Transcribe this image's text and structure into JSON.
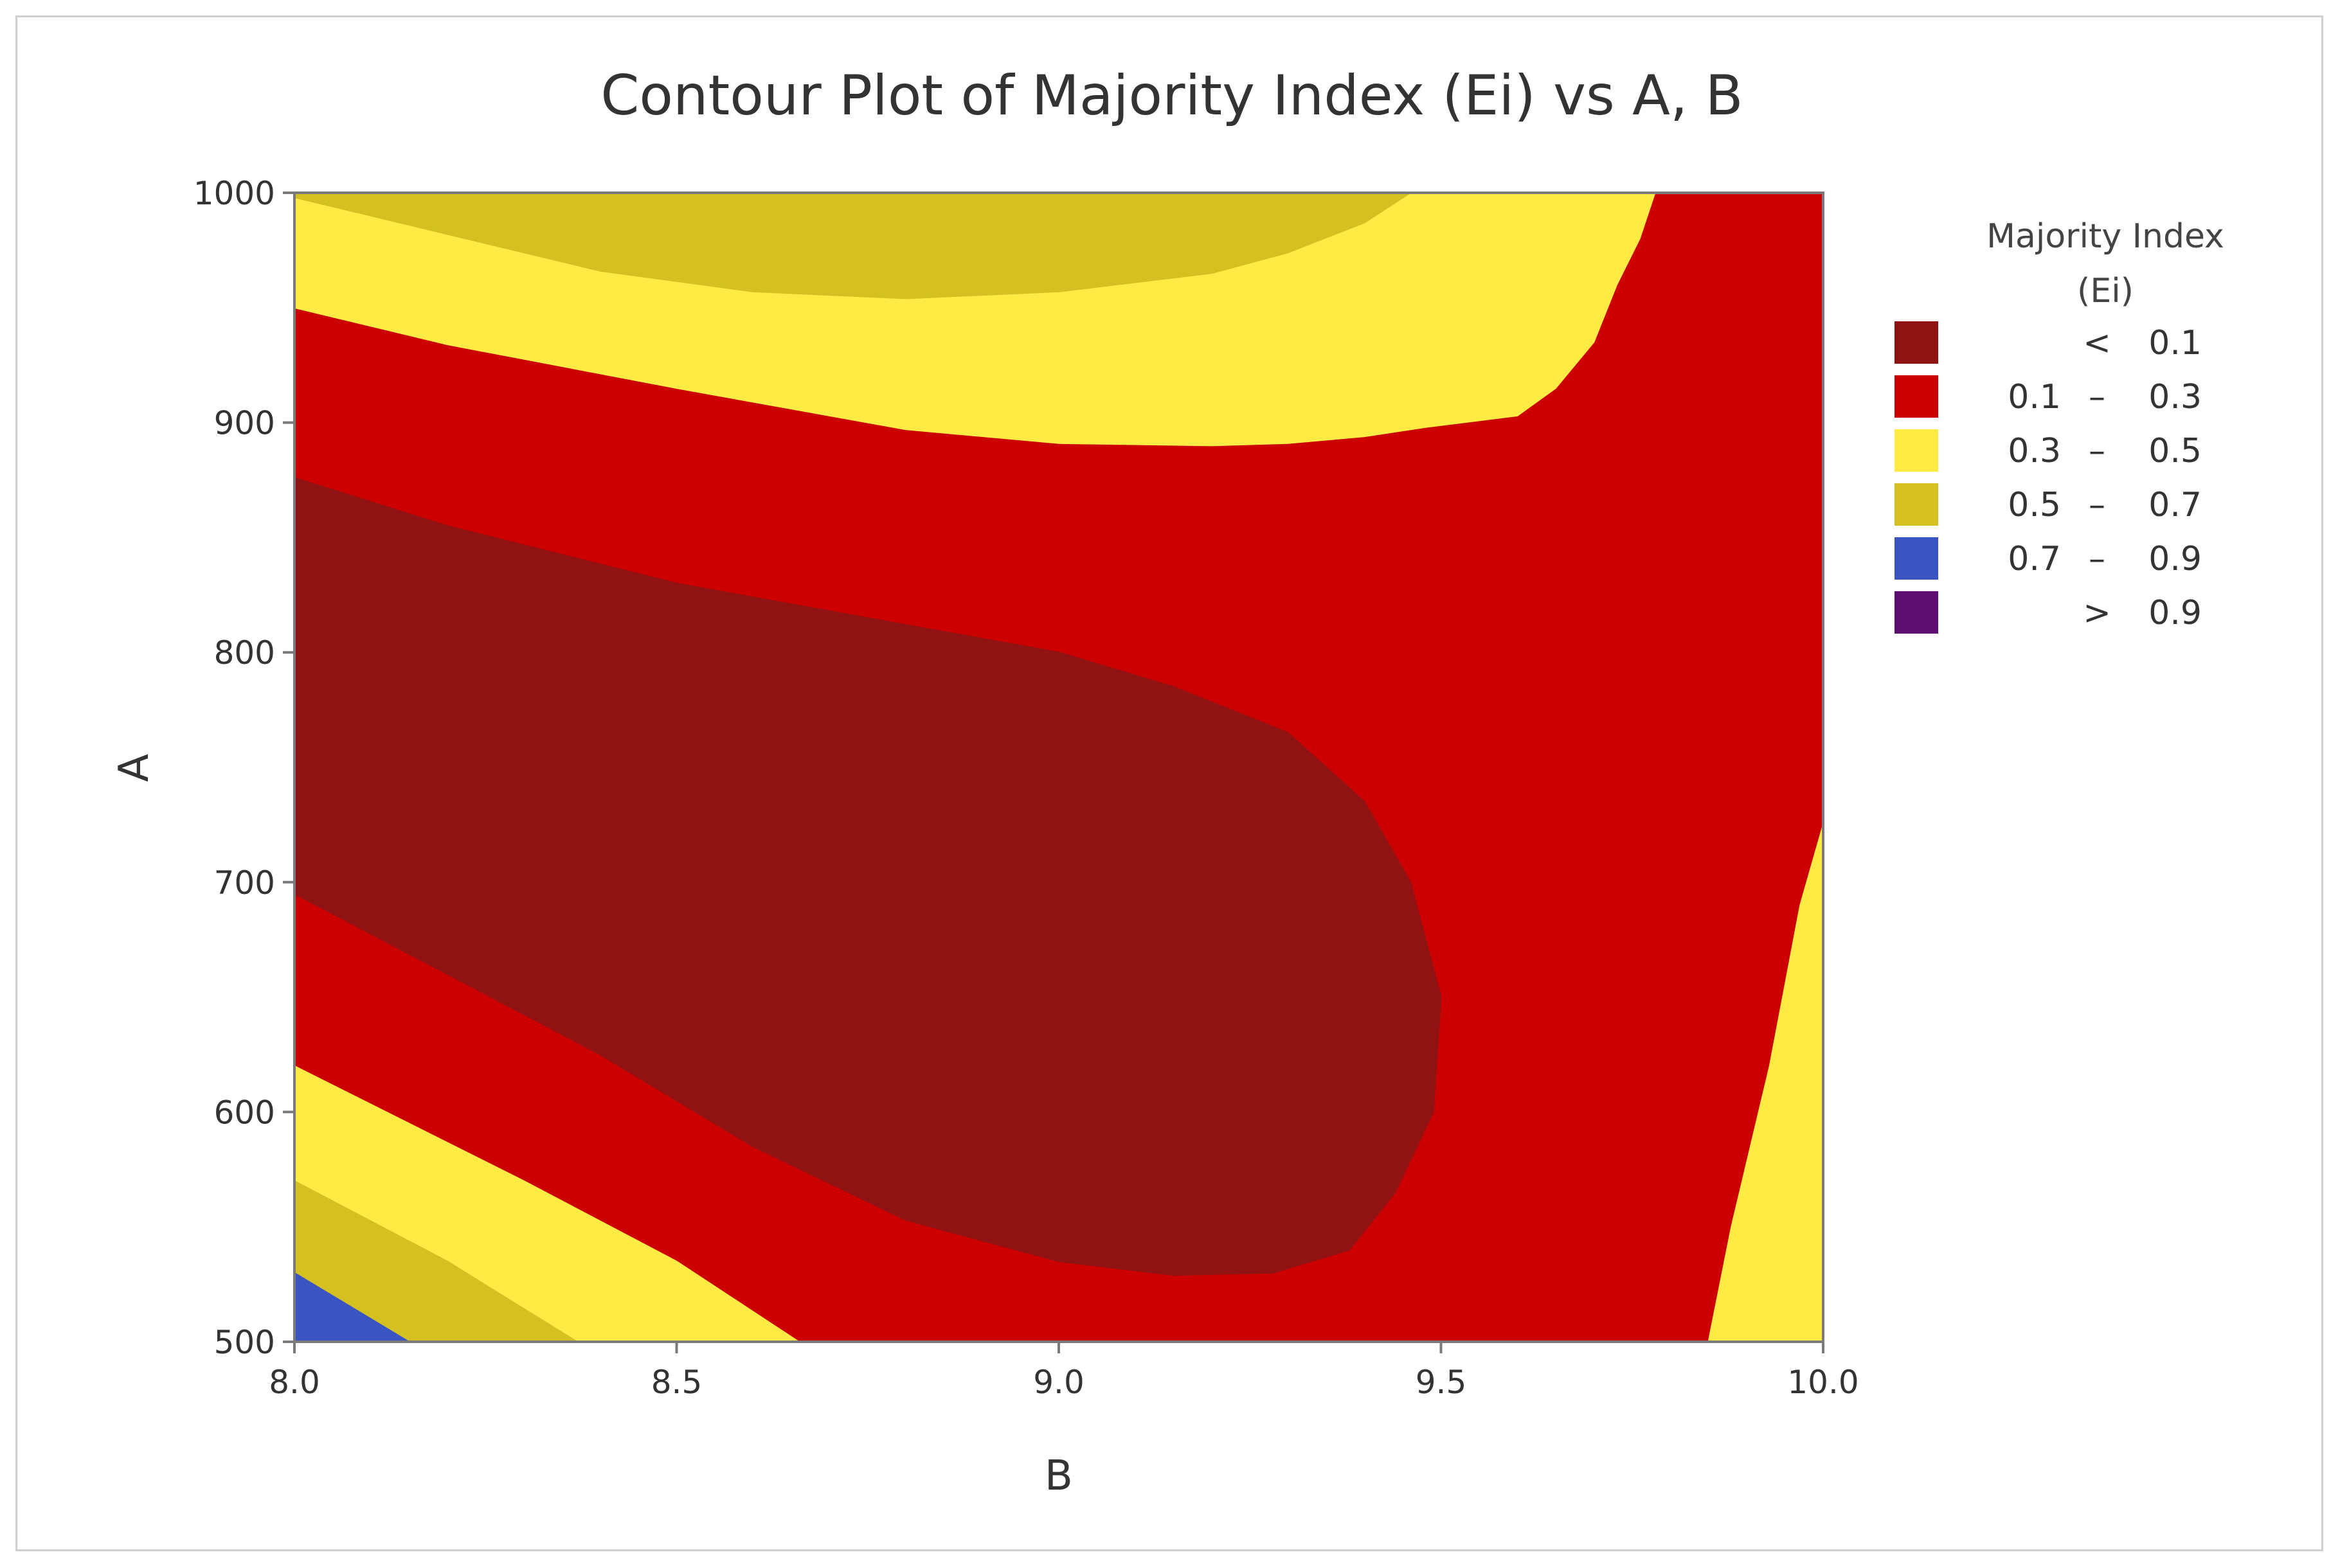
{
  "chart_data": {
    "type": "contour",
    "title": "Contour Plot of Majority Index (Ei) vs A, B",
    "xlabel": "B",
    "ylabel": "A",
    "xlim": [
      8.0,
      10.0
    ],
    "ylim": [
      500,
      1000
    ],
    "x_ticks": [
      "8.0",
      "8.5",
      "9.0",
      "9.5",
      "10.0"
    ],
    "y_ticks": [
      "500",
      "600",
      "700",
      "800",
      "900",
      "1000"
    ],
    "legend": {
      "title_line1": "Majority Index",
      "title_line2": "(Ei)",
      "placement": "right",
      "entries": [
        {
          "op": "<",
          "low": "",
          "dash": "",
          "high": "0.1",
          "color": "#901313"
        },
        {
          "op": "",
          "low": "0.1",
          "dash": "–",
          "high": "0.3",
          "color": "#cc0000"
        },
        {
          "op": "",
          "low": "0.3",
          "dash": "–",
          "high": "0.5",
          "color": "#ffeb44"
        },
        {
          "op": "",
          "low": "0.5",
          "dash": "–",
          "high": "0.7",
          "color": "#d4c121"
        },
        {
          "op": "",
          "low": "0.7",
          "dash": "–",
          "high": "0.9",
          "color": "#3a55c2"
        },
        {
          "op": ">",
          "low": "",
          "dash": "",
          "high": "0.9",
          "color": "#5c0f70"
        }
      ]
    },
    "regions": [
      {
        "level": "0.1 – 0.3",
        "color": "#cc0000",
        "outline": "full",
        "points": [
          [
            8.0,
            500
          ],
          [
            10.0,
            500
          ],
          [
            10.0,
            1000
          ],
          [
            8.0,
            1000
          ]
        ]
      },
      {
        "level": "0.3 – 0.5",
        "color": "#ffeb44",
        "outline": "top band",
        "points": [
          [
            8.0,
            1000
          ],
          [
            9.78,
            1000
          ],
          [
            9.76,
            980
          ],
          [
            9.73,
            960
          ],
          [
            9.7,
            935
          ],
          [
            9.65,
            915
          ],
          [
            9.6,
            903
          ],
          [
            9.48,
            898
          ],
          [
            9.4,
            894
          ],
          [
            9.3,
            891
          ],
          [
            9.2,
            890
          ],
          [
            9.0,
            891
          ],
          [
            8.8,
            897
          ],
          [
            8.5,
            915
          ],
          [
            8.2,
            934
          ],
          [
            8.0,
            950
          ]
        ]
      },
      {
        "level": "0.5 – 0.7",
        "color": "#d4c121",
        "outline": "top cap",
        "points": [
          [
            8.0,
            1000
          ],
          [
            9.46,
            1000
          ],
          [
            9.4,
            987
          ],
          [
            9.3,
            974
          ],
          [
            9.2,
            965
          ],
          [
            9.0,
            957
          ],
          [
            8.8,
            954
          ],
          [
            8.6,
            957
          ],
          [
            8.4,
            966
          ],
          [
            8.2,
            982
          ],
          [
            8.0,
            998
          ]
        ]
      },
      {
        "level": "< 0.1",
        "color": "#901313",
        "outline": "central lobe",
        "points": [
          [
            8.0,
            876
          ],
          [
            8.2,
            855
          ],
          [
            8.5,
            830
          ],
          [
            8.8,
            812
          ],
          [
            9.0,
            800
          ],
          [
            9.15,
            785
          ],
          [
            9.3,
            765
          ],
          [
            9.4,
            735
          ],
          [
            9.46,
            700
          ],
          [
            9.5,
            650
          ],
          [
            9.49,
            600
          ],
          [
            9.44,
            565
          ],
          [
            9.38,
            540
          ],
          [
            9.28,
            530
          ],
          [
            9.15,
            529
          ],
          [
            9.0,
            535
          ],
          [
            8.8,
            553
          ],
          [
            8.6,
            585
          ],
          [
            8.4,
            625
          ],
          [
            8.2,
            660
          ],
          [
            8.0,
            695
          ]
        ]
      },
      {
        "level": "0.3 – 0.5",
        "color": "#ffeb44",
        "outline": "bottom-left band",
        "points": [
          [
            8.0,
            620
          ],
          [
            8.3,
            570
          ],
          [
            8.5,
            535
          ],
          [
            8.66,
            500
          ],
          [
            8.0,
            500
          ]
        ]
      },
      {
        "level": "0.5 – 0.7",
        "color": "#d4c121",
        "outline": "bottom-left band",
        "points": [
          [
            8.0,
            570
          ],
          [
            8.2,
            535
          ],
          [
            8.37,
            500
          ],
          [
            8.0,
            500
          ]
        ]
      },
      {
        "level": "0.7 – 0.9",
        "color": "#3a55c2",
        "outline": "bottom-left corner",
        "points": [
          [
            8.0,
            530
          ],
          [
            8.15,
            500
          ],
          [
            8.0,
            500
          ]
        ]
      },
      {
        "level": "0.3 – 0.5",
        "color": "#ffeb44",
        "outline": "bottom-right wedge",
        "points": [
          [
            9.85,
            500
          ],
          [
            10.0,
            500
          ],
          [
            10.0,
            725
          ],
          [
            9.97,
            690
          ],
          [
            9.93,
            620
          ],
          [
            9.88,
            550
          ]
        ]
      }
    ]
  }
}
